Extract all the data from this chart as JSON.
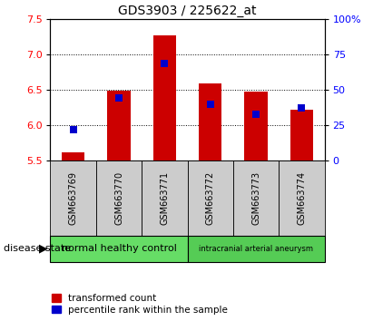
{
  "title": "GDS3903 / 225622_at",
  "samples": [
    "GSM663769",
    "GSM663770",
    "GSM663771",
    "GSM663772",
    "GSM663773",
    "GSM663774"
  ],
  "transformed_count": [
    5.62,
    6.49,
    7.27,
    6.59,
    6.47,
    6.22
  ],
  "percentile_rank": [
    22,
    44,
    69,
    40,
    33,
    37
  ],
  "ylim_left": [
    5.5,
    7.5
  ],
  "ylim_right": [
    0,
    100
  ],
  "yticks_left": [
    5.5,
    6.0,
    6.5,
    7.0,
    7.5
  ],
  "yticks_right": [
    0,
    25,
    50,
    75,
    100
  ],
  "ytick_right_labels": [
    "0",
    "25",
    "50",
    "75",
    "100%"
  ],
  "bar_color": "#cc0000",
  "dot_color": "#0000cc",
  "bg_color": "#ffffff",
  "group1_label": "normal healthy control",
  "group2_label": "intracranial arterial aneurysm",
  "group1_color": "#66dd66",
  "group2_color": "#55cc55",
  "disease_state_label": "disease state",
  "legend_red_label": "transformed count",
  "legend_blue_label": "percentile rank within the sample",
  "sample_bg": "#cccccc",
  "bar_width": 0.5
}
